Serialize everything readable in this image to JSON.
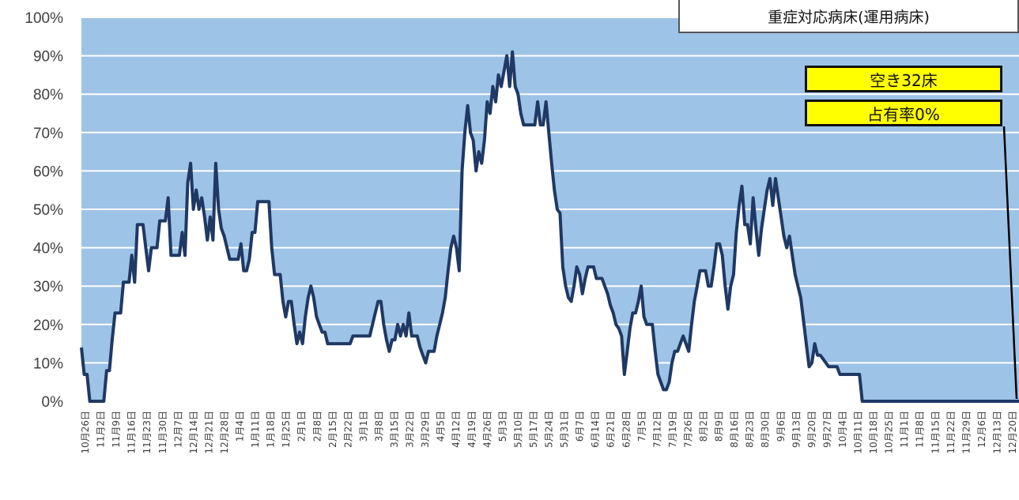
{
  "chart_data": {
    "type": "area",
    "title": "重症対応病床(運用病床)",
    "annotations": {
      "vacant": "空き32床",
      "occupancy": "占有率0%"
    },
    "ylim": [
      0,
      100
    ],
    "y_ticks": [
      "0%",
      "10%",
      "20%",
      "30%",
      "40%",
      "50%",
      "60%",
      "70%",
      "80%",
      "90%",
      "100%"
    ],
    "x_tick_labels": [
      "10月26日",
      "11月2日",
      "11月9日",
      "11月16日",
      "11月23日",
      "11月30日",
      "12月7日",
      "12月14日",
      "12月21日",
      "12月28日",
      "1月4日",
      "1月11日",
      "1月18日",
      "1月25日",
      "2月1日",
      "2月8日",
      "2月15日",
      "2月22日",
      "3月1日",
      "3月8日",
      "3月15日",
      "3月22日",
      "3月29日",
      "4月5日",
      "4月12日",
      "4月19日",
      "4月26日",
      "5月3日",
      "5月10日",
      "5月17日",
      "5月24日",
      "5月31日",
      "6月7日",
      "6月14日",
      "6月21日",
      "6月28日",
      "7月5日",
      "7月12日",
      "7月19日",
      "7月26日",
      "8月2日",
      "8月9日",
      "8月16日",
      "8月23日",
      "8月30日",
      "9月6日",
      "9月13日",
      "9月20日",
      "9月27日",
      "10月4日",
      "10月11日",
      "10月18日",
      "10月25日",
      "11月1日",
      "11月8日",
      "11月15日",
      "11月22日",
      "11月29日",
      "12月6日",
      "12月13日",
      "12月20日"
    ],
    "series": [
      {
        "values": [
          14,
          7,
          7,
          0,
          0,
          0,
          0,
          0,
          0,
          8,
          8,
          16,
          23,
          23,
          23,
          31,
          31,
          31,
          38,
          31,
          46,
          46,
          46,
          40,
          34,
          40,
          40,
          40,
          47,
          47,
          47,
          53,
          38,
          38,
          38,
          38,
          44,
          38,
          57,
          62,
          50,
          55,
          50,
          53,
          48,
          42,
          48,
          42,
          62,
          50,
          45,
          43,
          40,
          37,
          37,
          37,
          37,
          41,
          34,
          34,
          37,
          44,
          44,
          52,
          52,
          52,
          52,
          52,
          40,
          33,
          33,
          33,
          26,
          22,
          26,
          26,
          20,
          15,
          18,
          15,
          22,
          27,
          30,
          27,
          22,
          20,
          18,
          18,
          15,
          15,
          15,
          15,
          15,
          15,
          15,
          15,
          15,
          17,
          17,
          17,
          17,
          17,
          17,
          17,
          20,
          23,
          26,
          26,
          20,
          16,
          13,
          16,
          16,
          20,
          17,
          20,
          17,
          23,
          17,
          17,
          17,
          14,
          12,
          10,
          13,
          13,
          13,
          17,
          20,
          23,
          27,
          34,
          40,
          43,
          40,
          34,
          60,
          70,
          77,
          70,
          68,
          60,
          65,
          62,
          68,
          78,
          75,
          82,
          78,
          85,
          82,
          86,
          90,
          82,
          91,
          82,
          80,
          75,
          72,
          72,
          72,
          72,
          72,
          78,
          72,
          72,
          78,
          70,
          62,
          55,
          50,
          49,
          35,
          30,
          27,
          26,
          30,
          35,
          33,
          28,
          32,
          35,
          35,
          35,
          32,
          32,
          32,
          30,
          28,
          25,
          23,
          20,
          19,
          17,
          7,
          13,
          19,
          23,
          23,
          26,
          30,
          22,
          20,
          20,
          20,
          13,
          7,
          5,
          3,
          3,
          5,
          10,
          13,
          13,
          15,
          17,
          15,
          13,
          20,
          26,
          30,
          34,
          34,
          34,
          30,
          30,
          35,
          41,
          41,
          38,
          30,
          24,
          30,
          33,
          44,
          51,
          56,
          46,
          46,
          41,
          53,
          45,
          38,
          45,
          50,
          55,
          58,
          51,
          58,
          53,
          48,
          43,
          40,
          43,
          38,
          33,
          30,
          27,
          21,
          15,
          9,
          10,
          15,
          12,
          12,
          11,
          10,
          9,
          9,
          9,
          9,
          7,
          7,
          7,
          7,
          7,
          7,
          7,
          7,
          0,
          0,
          0,
          0,
          0,
          0,
          0,
          0,
          0,
          0,
          0,
          0,
          0,
          0,
          0,
          0,
          0,
          0,
          0,
          0,
          0,
          0,
          0,
          0,
          0,
          0,
          0,
          0,
          0,
          0,
          0,
          0,
          0,
          0,
          0,
          0,
          0,
          0,
          0,
          0,
          0,
          0,
          0,
          0,
          0,
          0,
          0,
          0,
          0,
          0,
          0,
          0,
          0,
          0,
          0,
          0,
          0
        ]
      }
    ],
    "grid": true,
    "colors": {
      "plot_background": "#9dc3e6",
      "line": "#1f3864",
      "fill": "#ffffff",
      "gridline": "#ffffff",
      "label_highlight": "#ffff00"
    }
  }
}
